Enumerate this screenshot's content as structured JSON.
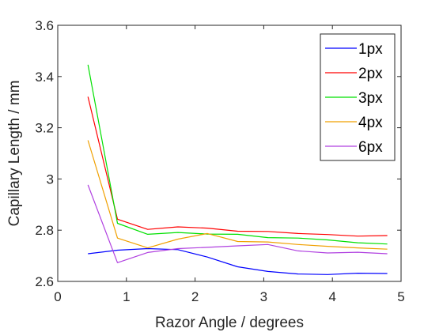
{
  "chart_data": {
    "type": "line",
    "xlabel": "Razor Angle / degrees",
    "ylabel": "Capillary Length / mm",
    "xlim": [
      0,
      5
    ],
    "ylim": [
      2.6,
      3.6
    ],
    "xticks": [
      "0",
      "1",
      "2",
      "3",
      "4",
      "5"
    ],
    "yticks": [
      "2.6",
      "2.8",
      "3",
      "3.2",
      "3.4",
      "3.6"
    ],
    "xtick_values": [
      0,
      1,
      2,
      3,
      4,
      5
    ],
    "ytick_values": [
      2.6,
      2.8,
      3.0,
      3.2,
      3.4,
      3.6
    ],
    "grid": false,
    "legend_position": "top-right",
    "x": [
      0.44,
      0.87,
      1.31,
      1.75,
      2.18,
      2.62,
      3.06,
      3.5,
      3.93,
      4.37,
      4.8
    ],
    "series": [
      {
        "name": "1px",
        "color": "#0000ff",
        "values": [
          2.708,
          2.722,
          2.728,
          2.724,
          2.695,
          2.657,
          2.639,
          2.629,
          2.627,
          2.632,
          2.631
        ]
      },
      {
        "name": "2px",
        "color": "#ff0000",
        "values": [
          3.321,
          2.843,
          2.803,
          2.813,
          2.808,
          2.796,
          2.795,
          2.787,
          2.783,
          2.777,
          2.779
        ]
      },
      {
        "name": "3px",
        "color": "#00e000",
        "values": [
          3.446,
          2.827,
          2.784,
          2.791,
          2.785,
          2.784,
          2.771,
          2.769,
          2.762,
          2.751,
          2.746
        ]
      },
      {
        "name": "4px",
        "color": "#f0a000",
        "values": [
          3.151,
          2.769,
          2.731,
          2.765,
          2.787,
          2.756,
          2.754,
          2.744,
          2.737,
          2.731,
          2.726
        ]
      },
      {
        "name": "6px",
        "color": "#b040e0",
        "values": [
          2.977,
          2.673,
          2.713,
          2.728,
          2.733,
          2.739,
          2.744,
          2.719,
          2.711,
          2.714,
          2.708
        ]
      }
    ]
  }
}
